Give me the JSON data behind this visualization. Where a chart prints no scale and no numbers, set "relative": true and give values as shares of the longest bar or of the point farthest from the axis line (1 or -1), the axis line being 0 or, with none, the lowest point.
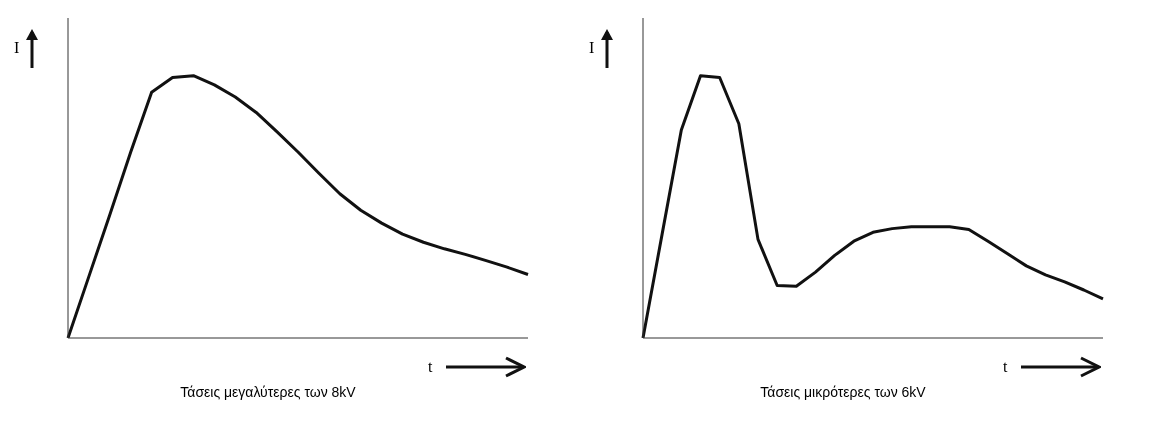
{
  "chart_data": [
    {
      "type": "line",
      "relative": true,
      "xlabel": "t",
      "ylabel": "I",
      "annotations": [
        "Τάσεις μεγαλύτερες των 8kV"
      ],
      "categories": [
        null,
        null,
        null,
        null,
        null,
        null,
        null,
        null,
        null,
        null,
        null,
        null,
        null,
        null,
        null,
        null,
        null,
        null,
        null,
        null,
        null,
        null,
        null
      ],
      "series": [
        {
          "color": "#111111",
          "values": [
            0,
            0.235,
            0.47,
            0.709,
            0.937,
            0.993,
            1,
            0.965,
            0.919,
            0.86,
            0.786,
            0.709,
            0.628,
            0.55,
            0.487,
            0.438,
            0.396,
            0.365,
            0.34,
            0.319,
            0.295,
            0.27,
            0.242
          ]
        }
      ]
    },
    {
      "type": "line",
      "relative": true,
      "xlabel": "t",
      "ylabel": "I",
      "annotations": [
        "Τάσεις μικρότερες των 6kV"
      ],
      "categories": [
        null,
        null,
        null,
        null,
        null,
        null,
        null,
        null,
        null,
        null,
        null,
        null,
        null,
        null,
        null,
        null,
        null,
        null,
        null,
        null,
        null,
        null,
        null,
        null,
        null
      ],
      "series": [
        {
          "color": "#111111",
          "values": [
            0,
            0.397,
            0.793,
            1,
            0.993,
            0.817,
            0.376,
            0.2,
            0.197,
            0.251,
            0.315,
            0.369,
            0.403,
            0.417,
            0.424,
            0.424,
            0.424,
            0.414,
            0.369,
            0.322,
            0.275,
            0.241,
            0.214,
            0.183,
            0.149
          ]
        }
      ]
    }
  ]
}
